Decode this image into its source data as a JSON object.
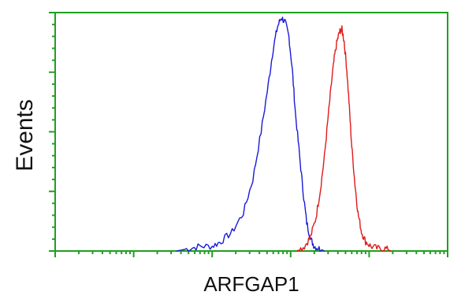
{
  "chart_data": {
    "type": "line",
    "title": "",
    "xlabel": "ARFGAP1",
    "ylabel": "Events",
    "x_scale": "log",
    "xlim": [
      1,
      100000
    ],
    "ylim": [
      0,
      100
    ],
    "grid": false,
    "legend": "none",
    "colors": {
      "axis": "#1fa01f",
      "frame": "#1fa01f"
    },
    "series": [
      {
        "color": "#1a1ad8",
        "x": [
          35,
          50,
          70,
          100,
          130,
          180,
          250,
          330,
          420,
          520,
          600,
          680,
          760,
          850,
          950,
          1050,
          1150,
          1300,
          1450,
          1600,
          1800,
          2000,
          2300,
          2700
        ],
        "y": [
          0,
          1,
          2,
          2,
          4,
          8,
          16,
          30,
          50,
          70,
          85,
          94,
          98,
          96,
          90,
          76,
          58,
          40,
          24,
          12,
          5,
          2,
          1,
          0
        ]
      },
      {
        "color": "#e01a1a",
        "x": [
          1200,
          1500,
          1800,
          2100,
          2400,
          2700,
          3000,
          3300,
          3600,
          3900,
          4200,
          4500,
          4800,
          5200,
          5600,
          6000,
          6600,
          7200,
          8000,
          9000,
          10500,
          13000,
          16000,
          19000
        ],
        "y": [
          0,
          2,
          6,
          14,
          26,
          40,
          56,
          70,
          81,
          88,
          92,
          93,
          88,
          76,
          60,
          44,
          28,
          16,
          8,
          4,
          2,
          1,
          1,
          0
        ]
      }
    ]
  }
}
